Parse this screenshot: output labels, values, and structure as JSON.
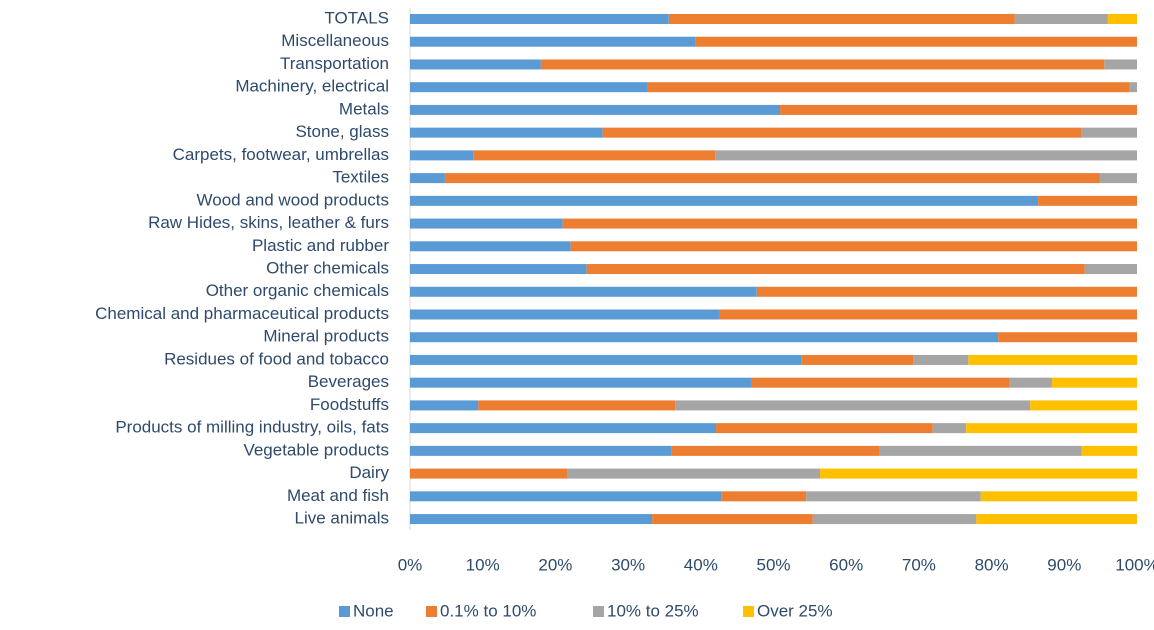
{
  "chart_data": {
    "type": "stacked_bar_horizontal",
    "categories": [
      "TOTALS",
      "Miscellaneous",
      "Transportation",
      "Machinery, electrical",
      "Metals",
      "Stone, glass",
      "Carpets, footwear, umbrellas",
      "Textiles",
      "Wood and wood products",
      "Raw Hides, skins, leather & furs",
      "Plastic and rubber",
      "Other chemicals",
      "Other organic chemicals",
      "Chemical and pharmaceutical products",
      "Mineral products",
      "Residues of food and tobacco",
      "Beverages",
      "Foodstuffs",
      "Products of milling industry, oils, fats",
      "Vegetable products",
      "Dairy",
      "Meat and fish",
      "Live animals"
    ],
    "series": [
      {
        "name": "None",
        "color": "#5b9bd5",
        "values": [
          35.6,
          39.3,
          18.0,
          32.6,
          50.9,
          26.5,
          8.7,
          4.8,
          86.4,
          21.0,
          22.1,
          24.3,
          47.7,
          42.5,
          80.9,
          53.8,
          46.9,
          9.4,
          42.1,
          36.0,
          0,
          42.8,
          33.3
        ]
      },
      {
        "name": "0.1% to 10%",
        "color": "#ed7d31",
        "values": [
          47.6,
          60.7,
          77.5,
          66.3,
          49.1,
          65.9,
          33.3,
          90.1,
          13.6,
          79.0,
          77.9,
          68.5,
          52.3,
          57.5,
          19.1,
          15.4,
          35.5,
          27.1,
          29.8,
          28.6,
          21.6,
          11.7,
          22.1
        ]
      },
      {
        "name": "10% to 25%",
        "color": "#a5a5a5",
        "values": [
          12.8,
          0,
          4.5,
          1.1,
          0,
          7.6,
          58.0,
          5.1,
          0,
          0,
          0,
          7.2,
          0,
          0,
          0,
          7.6,
          5.9,
          48.8,
          4.6,
          27.8,
          34.8,
          24.0,
          22.5
        ]
      },
      {
        "name": "Over 25%",
        "color": "#ffc000",
        "values": [
          4.0,
          0,
          0,
          0,
          0,
          0,
          0,
          0,
          0,
          0,
          0,
          0,
          0,
          0,
          0,
          23.2,
          11.7,
          14.7,
          23.5,
          7.6,
          43.6,
          21.5,
          22.1
        ]
      }
    ],
    "xlim": [
      0,
      100
    ],
    "xticks": [
      {
        "value": 0,
        "label": "0%"
      },
      {
        "value": 10,
        "label": "10%"
      },
      {
        "value": 20,
        "label": "20%"
      },
      {
        "value": 30,
        "label": "30%"
      },
      {
        "value": 40,
        "label": "40%"
      },
      {
        "value": 50,
        "label": "50%"
      },
      {
        "value": 60,
        "label": "60%"
      },
      {
        "value": 70,
        "label": "70%"
      },
      {
        "value": 80,
        "label": "80%"
      },
      {
        "value": 90,
        "label": "90%"
      },
      {
        "value": 100,
        "label": "100%"
      }
    ],
    "legend": "bottom"
  }
}
